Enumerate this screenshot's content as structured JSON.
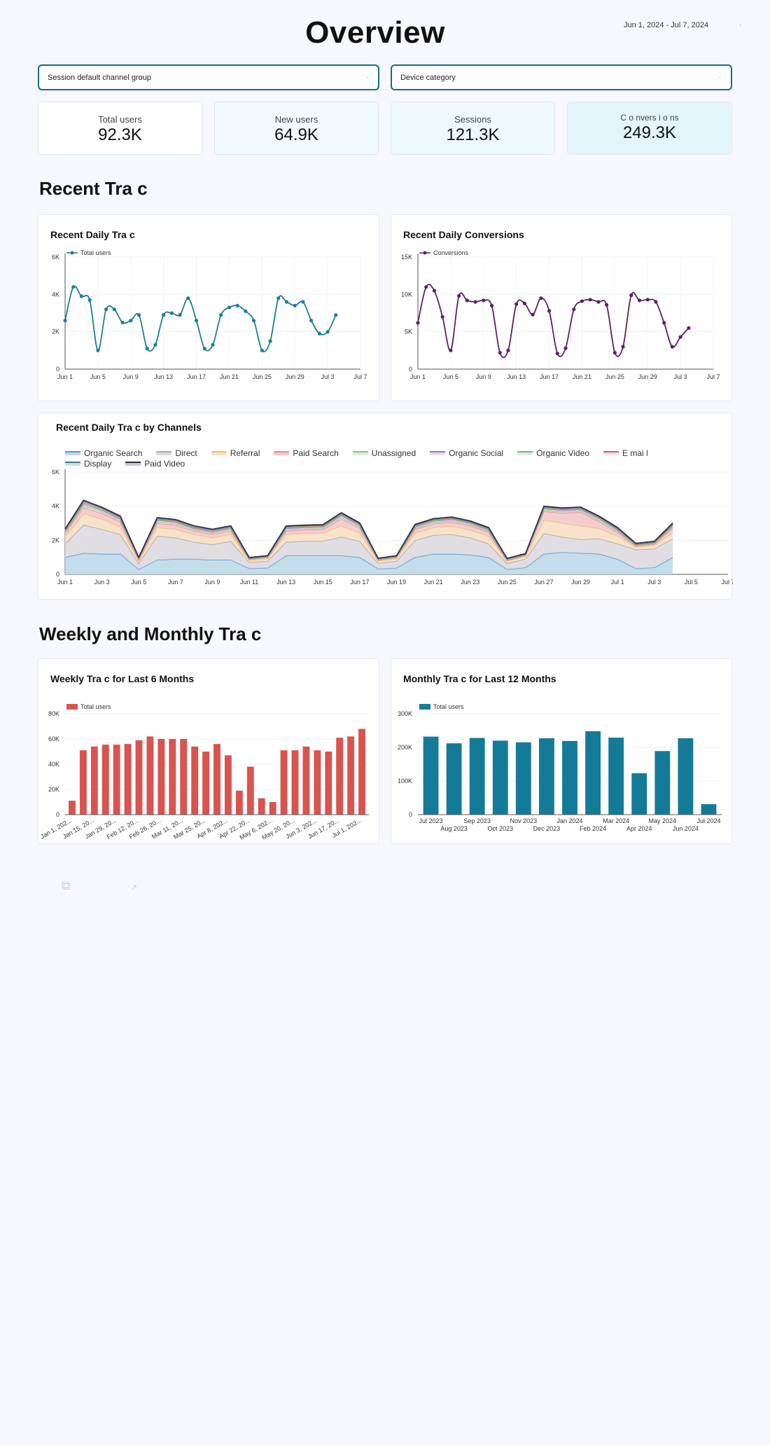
{
  "header": {
    "title": "Overview",
    "date_range": "Jun 1, 2024 - Jul 7, 2024",
    "date_dot": "·"
  },
  "filters": [
    {
      "label": "Session default channel group",
      "caret": "·"
    },
    {
      "label": "Device category",
      "caret": "·"
    }
  ],
  "kpis": [
    {
      "label": "Total users",
      "value": "92.3K",
      "bg": "#ffffff"
    },
    {
      "label": "New users",
      "value": "64.9K",
      "bg": "#f3fafe"
    },
    {
      "label": "Sessions",
      "value": "121.3K",
      "bg": "#eef8fd"
    },
    {
      "label": "C o nvers i o ns",
      "value": "249.3K",
      "bg": "#e3f4fb"
    }
  ],
  "sections": {
    "recent": "Recent Tra c",
    "weekly_monthly": "Weekly and Monthly Tra c"
  },
  "colors": {
    "teal": "#1b7e99",
    "purple": "#5c2164",
    "red": "#d9534f",
    "monthly": "#137b98",
    "filter_border": "#0f6e85"
  },
  "icons": {
    "faint_icon": "link-icon",
    "faint_icon_2": "expand-icon"
  },
  "faint_glyphs": {
    "icon1": "⧉",
    "icon2": "↗"
  },
  "chart_data": [
    {
      "id": "daily_traffic",
      "title": "Recent Daily Tra c",
      "type": "line",
      "series": [
        {
          "name": "Total users",
          "color": "#1b7e99",
          "values": [
            2600,
            4400,
            3900,
            3700,
            1000,
            3200,
            3200,
            2500,
            2600,
            2900,
            1100,
            1300,
            2900,
            3000,
            2900,
            3800,
            2600,
            1100,
            1300,
            2900,
            3300,
            3400,
            3100,
            2600,
            1000,
            1500,
            3800,
            3600,
            3400,
            3600,
            2600,
            1900,
            2000,
            2900
          ]
        }
      ],
      "x_tick_labels": [
        "Jun 1",
        "Jun 5",
        "Jun 9",
        "Jun 13",
        "Jun 17",
        "Jun 21",
        "Jun 25",
        "Jun 29",
        "Jul 3",
        "Jul 7"
      ],
      "y_tick_labels": [
        "0",
        "2K",
        "4K",
        "6K"
      ],
      "ylim": [
        0,
        6000
      ],
      "grid": true,
      "legend_position": "top-left"
    },
    {
      "id": "daily_conversions",
      "title": "Recent Daily Conversions",
      "type": "line",
      "series": [
        {
          "name": "Conversions",
          "color": "#5c2164",
          "values": [
            6200,
            11000,
            10500,
            7000,
            2500,
            9800,
            9200,
            9000,
            9200,
            8500,
            2200,
            2500,
            8700,
            8800,
            7300,
            9500,
            7800,
            2100,
            2800,
            8000,
            9100,
            9300,
            9000,
            8600,
            2200,
            3000,
            9900,
            9200,
            9300,
            9000,
            6200,
            3000,
            4300,
            5500
          ]
        }
      ],
      "x_tick_labels": [
        "Jun 1",
        "Jun 5",
        "Jun 9",
        "Jun 13",
        "Jun 17",
        "Jun 21",
        "Jun 25",
        "Jun 29",
        "Jul 3",
        "Jul 7"
      ],
      "y_tick_labels": [
        "0",
        "5K",
        "10K",
        "15K"
      ],
      "ylim": [
        0,
        15000
      ],
      "grid": true,
      "legend_position": "top-left"
    },
    {
      "id": "channels",
      "title": "Recent Daily Tra c by Channels",
      "type": "area",
      "series": [
        {
          "name": "Organic Search",
          "color": "#5b9bd5",
          "fill": "#bcd9e8",
          "values": [
            1000,
            1250,
            1200,
            1200,
            300,
            850,
            900,
            900,
            850,
            850,
            350,
            380,
            1100,
            1100,
            1100,
            1100,
            1000,
            330,
            380,
            1000,
            1200,
            1200,
            1150,
            1000,
            300,
            400,
            1200,
            1300,
            1250,
            1200,
            900,
            350,
            400,
            1000
          ]
        },
        {
          "name": "Direct",
          "color": "#a9a9b0",
          "fill": "#ddd9e0",
          "values": [
            800,
            1650,
            1450,
            1150,
            350,
            1400,
            1250,
            1000,
            900,
            1100,
            350,
            400,
            800,
            850,
            850,
            1100,
            950,
            330,
            400,
            1000,
            1100,
            1150,
            1000,
            800,
            350,
            500,
            1200,
            900,
            800,
            900,
            900,
            1100,
            1100,
            1100
          ]
        },
        {
          "name": "Referral",
          "color": "#f6c275",
          "fill": "#f7e0c4",
          "values": [
            400,
            650,
            600,
            450,
            150,
            500,
            500,
            450,
            400,
            400,
            120,
            140,
            450,
            450,
            480,
            650,
            470,
            120,
            140,
            420,
            450,
            500,
            450,
            450,
            120,
            150,
            800,
            800,
            800,
            600,
            450,
            150,
            200,
            350
          ]
        },
        {
          "name": "Paid Search",
          "color": "#ef8c8c",
          "fill": "#f4c8cc",
          "values": [
            200,
            380,
            330,
            280,
            80,
            250,
            240,
            200,
            200,
            200,
            60,
            70,
            200,
            200,
            200,
            400,
            300,
            60,
            70,
            220,
            220,
            220,
            250,
            220,
            60,
            60,
            500,
            600,
            800,
            400,
            200,
            60,
            80,
            250
          ]
        },
        {
          "name": "Unassigned",
          "color": "#7fc97f",
          "fill": "#e5e7e2",
          "values": [
            80,
            120,
            100,
            90,
            30,
            90,
            90,
            70,
            70,
            80,
            20,
            20,
            70,
            70,
            70,
            100,
            80,
            20,
            20,
            70,
            80,
            80,
            70,
            60,
            20,
            20,
            80,
            80,
            80,
            80,
            80,
            40,
            40,
            80
          ]
        },
        {
          "name": "Organic Social",
          "color": "#9b6fc5",
          "fill": "#e5dfea",
          "values": [
            60,
            100,
            90,
            80,
            30,
            90,
            90,
            80,
            80,
            80,
            30,
            30,
            80,
            80,
            80,
            100,
            80,
            30,
            30,
            80,
            80,
            80,
            80,
            80,
            30,
            30,
            80,
            80,
            80,
            100,
            80,
            40,
            40,
            80
          ]
        },
        {
          "name": "Organic Video",
          "color": "#6abf69",
          "fill": "#e8e8e8",
          "values": [
            40,
            60,
            50,
            50,
            20,
            40,
            40,
            40,
            40,
            40,
            20,
            20,
            40,
            40,
            40,
            50,
            40,
            20,
            20,
            40,
            40,
            40,
            40,
            40,
            20,
            20,
            40,
            40,
            40,
            40,
            40,
            20,
            20,
            40
          ]
        },
        {
          "name": "E mai l",
          "color": "#e45756",
          "fill": "#e8e4e6",
          "values": [
            40,
            60,
            50,
            50,
            20,
            40,
            40,
            40,
            40,
            40,
            20,
            20,
            40,
            40,
            40,
            50,
            40,
            20,
            20,
            40,
            40,
            40,
            40,
            40,
            20,
            20,
            40,
            40,
            40,
            40,
            40,
            20,
            20,
            40
          ]
        },
        {
          "name": "Display",
          "color": "#3b7d8c",
          "fill": "#d0dde0",
          "values": [
            30,
            50,
            40,
            40,
            10,
            40,
            40,
            40,
            40,
            30,
            10,
            10,
            30,
            30,
            30,
            40,
            30,
            10,
            10,
            30,
            30,
            30,
            30,
            30,
            10,
            10,
            30,
            30,
            30,
            30,
            30,
            20,
            20,
            30
          ]
        },
        {
          "name": "Paid Video",
          "color": "#2b2d4d",
          "fill": "#c8c9d4",
          "values": [
            20,
            30,
            30,
            30,
            10,
            30,
            30,
            30,
            30,
            30,
            10,
            10,
            30,
            30,
            30,
            30,
            30,
            10,
            10,
            30,
            30,
            30,
            30,
            30,
            10,
            10,
            30,
            30,
            30,
            30,
            30,
            20,
            20,
            50
          ]
        }
      ],
      "x_tick_labels": [
        "Jun 1",
        "Jun 3",
        "Jun 5",
        "Jun 7",
        "Jun 9",
        "Jun 11",
        "Jun 13",
        "Jun 15",
        "Jun 17",
        "Jun 19",
        "Jun 21",
        "Jun 23",
        "Jun 25",
        "Jun 27",
        "Jun 29",
        "Jul 1",
        "Jul 3",
        "Jul 5",
        "Jul 7"
      ],
      "y_tick_labels": [
        "0",
        "2K",
        "4K",
        "6K"
      ],
      "ylim": [
        0,
        6000
      ],
      "grid": true,
      "legend_position": "top"
    },
    {
      "id": "weekly",
      "title": "Weekly Tra c for Last 6 Months",
      "type": "bar",
      "series": [
        {
          "name": "Total users",
          "color": "#d9534f",
          "values": [
            11000,
            51000,
            54000,
            55500,
            55500,
            56000,
            59000,
            62000,
            60000,
            60000,
            60000,
            54000,
            50000,
            56000,
            47000,
            19000,
            38000,
            13000,
            10000,
            51000,
            51000,
            54000,
            51000,
            50000,
            61000,
            62000,
            68000
          ]
        }
      ],
      "x_tick_labels": [
        "Jan 1, 202...",
        "Jan 15, 20...",
        "Jan 29, 20...",
        "Feb 12, 20...",
        "Feb 26, 20...",
        "Mar 11, 20...",
        "Mar 25, 20...",
        "Apr 8, 202...",
        "Apr 22, 20...",
        "May 6, 202...",
        "May 20, 20...",
        "Jun 3, 202...",
        "Jun 17, 20...",
        "Jul 1, 202..."
      ],
      "y_tick_labels": [
        "0",
        "20K",
        "40K",
        "60K",
        "80K"
      ],
      "ylim": [
        0,
        80000
      ],
      "legend_position": "top-left"
    },
    {
      "id": "monthly",
      "title": "Monthly Tra c for Last 12 Months",
      "type": "bar",
      "series": [
        {
          "name": "Total users",
          "color": "#137b98",
          "values": [
            232000,
            212000,
            228000,
            220000,
            215000,
            227000,
            219000,
            248000,
            229000,
            123000,
            189000,
            227000,
            31000
          ]
        }
      ],
      "x_tick_labels": [
        "Jul 2023",
        "Aug 2023",
        "Sep 2023",
        "Oct 2023",
        "Nov 2023",
        "Dec 2023",
        "Jan 2024",
        "Feb 2024",
        "Mar 2024",
        "Apr 2024",
        "May 2024",
        "Jun 2024",
        "Jul 2024"
      ],
      "y_tick_labels": [
        "0",
        "100K",
        "200K",
        "300K"
      ],
      "ylim": [
        0,
        300000
      ],
      "legend_position": "top-left"
    }
  ]
}
